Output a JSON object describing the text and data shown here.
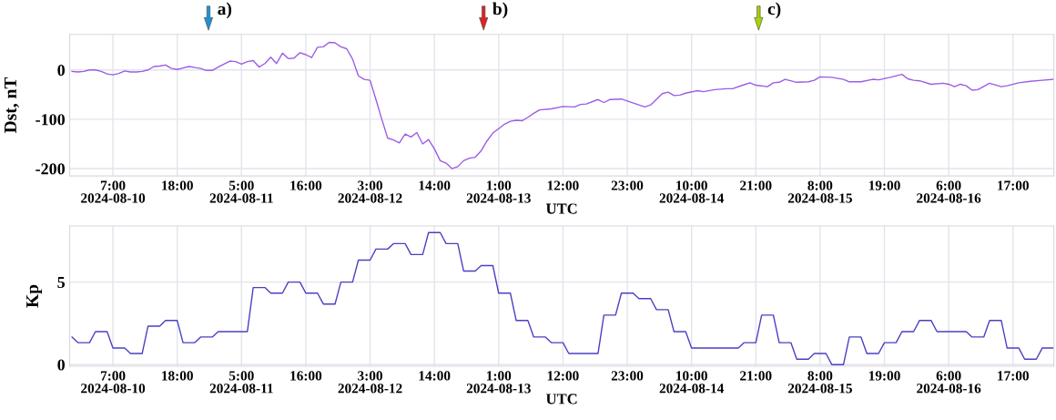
{
  "chart_data": [
    {
      "type": "line",
      "ylabel": "Dst, nT",
      "xlabel": "UTC",
      "grid": true,
      "xlim": [
        "2024-08-09T23:36",
        "2024-08-17T00:00"
      ],
      "ylim": [
        -215,
        72
      ],
      "yticks": [
        -200,
        -100,
        0
      ],
      "xticks": [
        {
          "value": "2024-08-10T07:00",
          "label": "7:00\n2024-08-10"
        },
        {
          "value": "2024-08-10T18:00",
          "label": "18:00"
        },
        {
          "value": "2024-08-11T05:00",
          "label": "5:00\n2024-08-11"
        },
        {
          "value": "2024-08-11T16:00",
          "label": "16:00"
        },
        {
          "value": "2024-08-12T03:00",
          "label": "3:00\n2024-08-12"
        },
        {
          "value": "2024-08-12T14:00",
          "label": "14:00"
        },
        {
          "value": "2024-08-13T01:00",
          "label": "1:00\n2024-08-13"
        },
        {
          "value": "2024-08-13T12:00",
          "label": "12:00"
        },
        {
          "value": "2024-08-13T23:00",
          "label": "23:00"
        },
        {
          "value": "2024-08-14T10:00",
          "label": "10:00\n2024-08-14"
        },
        {
          "value": "2024-08-14T21:00",
          "label": "21:00"
        },
        {
          "value": "2024-08-15T08:00",
          "label": "8:00\n2024-08-15"
        },
        {
          "value": "2024-08-15T19:00",
          "label": "19:00"
        },
        {
          "value": "2024-08-16T06:00",
          "label": "6:00\n2024-08-16"
        },
        {
          "value": "2024-08-16T17:00",
          "label": "17:00"
        }
      ],
      "annotations": [
        "a)",
        "b)",
        "c)"
      ],
      "series": [
        {
          "color": "#9b5de5",
          "x": [
            "2024-08-10T00:00",
            "2024-08-10T01:00",
            "2024-08-10T02:00",
            "2024-08-10T03:00",
            "2024-08-10T04:00",
            "2024-08-10T05:00",
            "2024-08-10T06:00",
            "2024-08-10T07:00",
            "2024-08-10T08:00",
            "2024-08-10T09:00",
            "2024-08-10T10:00",
            "2024-08-10T11:00",
            "2024-08-10T12:00",
            "2024-08-10T13:00",
            "2024-08-10T14:00",
            "2024-08-10T15:00",
            "2024-08-10T16:00",
            "2024-08-10T17:00",
            "2024-08-10T18:00",
            "2024-08-10T19:00",
            "2024-08-10T20:00",
            "2024-08-10T21:00",
            "2024-08-10T22:00",
            "2024-08-10T23:00",
            "2024-08-11T00:00",
            "2024-08-11T01:00",
            "2024-08-11T02:00",
            "2024-08-11T03:00",
            "2024-08-11T04:00",
            "2024-08-11T05:00",
            "2024-08-11T06:00",
            "2024-08-11T07:00",
            "2024-08-11T08:00",
            "2024-08-11T09:00",
            "2024-08-11T10:00",
            "2024-08-11T11:00",
            "2024-08-11T12:00",
            "2024-08-11T13:00",
            "2024-08-11T14:00",
            "2024-08-11T15:00",
            "2024-08-11T16:00",
            "2024-08-11T17:00",
            "2024-08-11T18:00",
            "2024-08-11T19:00",
            "2024-08-11T20:00",
            "2024-08-11T21:00",
            "2024-08-11T22:00",
            "2024-08-11T23:00",
            "2024-08-12T00:00",
            "2024-08-12T01:00",
            "2024-08-12T02:00",
            "2024-08-12T03:00",
            "2024-08-12T04:00",
            "2024-08-12T05:00",
            "2024-08-12T06:00",
            "2024-08-12T07:00",
            "2024-08-12T08:00",
            "2024-08-12T09:00",
            "2024-08-12T10:00",
            "2024-08-12T11:00",
            "2024-08-12T12:00",
            "2024-08-12T13:00",
            "2024-08-12T14:00",
            "2024-08-12T15:00",
            "2024-08-12T16:00",
            "2024-08-12T17:00",
            "2024-08-12T18:00",
            "2024-08-12T19:00",
            "2024-08-12T20:00",
            "2024-08-12T21:00",
            "2024-08-12T22:00",
            "2024-08-12T23:00",
            "2024-08-13T00:00",
            "2024-08-13T01:00",
            "2024-08-13T02:00",
            "2024-08-13T03:00",
            "2024-08-13T04:00",
            "2024-08-13T05:00",
            "2024-08-13T06:00",
            "2024-08-13T07:00",
            "2024-08-13T08:00",
            "2024-08-13T10:00",
            "2024-08-13T12:00",
            "2024-08-13T14:00",
            "2024-08-13T15:00",
            "2024-08-13T16:00",
            "2024-08-13T18:00",
            "2024-08-13T19:00",
            "2024-08-13T20:00",
            "2024-08-13T22:00",
            "2024-08-14T02:00",
            "2024-08-14T03:00",
            "2024-08-14T05:00",
            "2024-08-14T06:00",
            "2024-08-14T07:00",
            "2024-08-14T08:00",
            "2024-08-14T09:00",
            "2024-08-14T11:00",
            "2024-08-14T12:00",
            "2024-08-14T14:00",
            "2024-08-14T16:00",
            "2024-08-14T17:00",
            "2024-08-14T19:00",
            "2024-08-14T20:00",
            "2024-08-14T21:00",
            "2024-08-14T23:00",
            "2024-08-15T00:00",
            "2024-08-15T01:00",
            "2024-08-15T02:00",
            "2024-08-15T04:00",
            "2024-08-15T06:00",
            "2024-08-15T07:00",
            "2024-08-15T08:00",
            "2024-08-15T10:00",
            "2024-08-15T12:00",
            "2024-08-15T13:00",
            "2024-08-15T15:00",
            "2024-08-15T17:00",
            "2024-08-15T18:00",
            "2024-08-15T20:00",
            "2024-08-15T22:00",
            "2024-08-15T23:00",
            "2024-08-16T00:00",
            "2024-08-16T01:00",
            "2024-08-16T03:00",
            "2024-08-16T05:00",
            "2024-08-16T06:00",
            "2024-08-16T07:00",
            "2024-08-16T08:00",
            "2024-08-16T09:00",
            "2024-08-16T10:00",
            "2024-08-16T11:00",
            "2024-08-16T13:00",
            "2024-08-16T15:00",
            "2024-08-16T16:00",
            "2024-08-16T18:00",
            "2024-08-16T20:00",
            "2024-08-16T22:00",
            "2024-08-17T00:00"
          ],
          "values": [
            -3,
            -4,
            -3,
            0,
            0,
            -3,
            -8,
            -10,
            -7,
            -2,
            -4,
            -4,
            -3,
            0,
            7,
            8,
            10,
            3,
            1,
            4,
            7,
            5,
            3,
            -1,
            -1,
            6,
            12,
            18,
            17,
            12,
            17,
            19,
            6,
            13,
            26,
            13,
            34,
            23,
            24,
            35,
            31,
            25,
            46,
            47,
            56,
            55,
            47,
            43,
            22,
            -12,
            -19,
            -21,
            -60,
            -100,
            -138,
            -142,
            -148,
            -130,
            -136,
            -127,
            -150,
            -141,
            -160,
            -184,
            -189,
            -200,
            -196,
            -184,
            -179,
            -177,
            -164,
            -144,
            -128,
            -119,
            -110,
            -104,
            -102,
            -103,
            -96,
            -88,
            -81,
            -79,
            -74,
            -75,
            -70,
            -69,
            -60,
            -66,
            -60,
            -59,
            -75,
            -71,
            -48,
            -45,
            -52,
            -51,
            -47,
            -42,
            -44,
            -40,
            -38,
            -38,
            -30,
            -26,
            -31,
            -34,
            -26,
            -25,
            -19,
            -25,
            -24,
            -21,
            -14,
            -15,
            -19,
            -24,
            -24,
            -19,
            -20,
            -15,
            -9,
            -18,
            -21,
            -22,
            -29,
            -27,
            -29,
            -34,
            -29,
            -32,
            -41,
            -40,
            -27,
            -34,
            -32,
            -26,
            -23,
            -21,
            -19
          ]
        }
      ]
    },
    {
      "type": "line",
      "ylabel": "Kp",
      "xlabel": "UTC",
      "grid": true,
      "xlim": [
        "2024-08-09T23:36",
        "2024-08-17T00:00"
      ],
      "ylim": [
        -0.1,
        8.4
      ],
      "yticks": [
        0,
        5
      ],
      "xticks": [
        {
          "value": "2024-08-10T07:00",
          "label": "7:00\n2024-08-10"
        },
        {
          "value": "2024-08-10T18:00",
          "label": "18:00"
        },
        {
          "value": "2024-08-11T05:00",
          "label": "5:00\n2024-08-11"
        },
        {
          "value": "2024-08-11T16:00",
          "label": "16:00"
        },
        {
          "value": "2024-08-12T03:00",
          "label": "3:00\n2024-08-12"
        },
        {
          "value": "2024-08-12T14:00",
          "label": "14:00"
        },
        {
          "value": "2024-08-13T01:00",
          "label": "1:00\n2024-08-13"
        },
        {
          "value": "2024-08-13T12:00",
          "label": "12:00"
        },
        {
          "value": "2024-08-13T23:00",
          "label": "23:00"
        },
        {
          "value": "2024-08-14T10:00",
          "label": "10:00\n2024-08-14"
        },
        {
          "value": "2024-08-14T21:00",
          "label": "21:00"
        },
        {
          "value": "2024-08-15T08:00",
          "label": "8:00\n2024-08-15"
        },
        {
          "value": "2024-08-15T19:00",
          "label": "19:00"
        },
        {
          "value": "2024-08-16T06:00",
          "label": "6:00\n2024-08-16"
        },
        {
          "value": "2024-08-16T17:00",
          "label": "17:00"
        }
      ],
      "series": [
        {
          "color": "#4a40c4",
          "x": [
            "2024-08-10T00:00",
            "2024-08-10T01:00",
            "2024-08-10T03:00",
            "2024-08-10T04:00",
            "2024-08-10T06:00",
            "2024-08-10T07:00",
            "2024-08-10T09:00",
            "2024-08-10T10:00",
            "2024-08-10T12:00",
            "2024-08-10T13:00",
            "2024-08-10T15:00",
            "2024-08-10T16:00",
            "2024-08-10T18:00",
            "2024-08-10T19:00",
            "2024-08-10T21:00",
            "2024-08-10T22:00",
            "2024-08-11T00:00",
            "2024-08-11T01:00",
            "2024-08-11T06:00",
            "2024-08-11T07:00",
            "2024-08-11T09:00",
            "2024-08-11T10:00",
            "2024-08-11T12:00",
            "2024-08-11T13:00",
            "2024-08-11T15:00",
            "2024-08-11T16:00",
            "2024-08-11T18:00",
            "2024-08-11T19:00",
            "2024-08-11T21:00",
            "2024-08-11T22:00",
            "2024-08-12T00:00",
            "2024-08-12T01:00",
            "2024-08-12T03:00",
            "2024-08-12T04:00",
            "2024-08-12T06:00",
            "2024-08-12T07:00",
            "2024-08-12T09:00",
            "2024-08-12T10:00",
            "2024-08-12T12:00",
            "2024-08-12T13:00",
            "2024-08-12T15:00",
            "2024-08-12T16:00",
            "2024-08-12T18:00",
            "2024-08-12T19:00",
            "2024-08-12T21:00",
            "2024-08-12T22:00",
            "2024-08-13T00:00",
            "2024-08-13T01:00",
            "2024-08-13T03:00",
            "2024-08-13T04:00",
            "2024-08-13T06:00",
            "2024-08-13T07:00",
            "2024-08-13T09:00",
            "2024-08-13T10:00",
            "2024-08-13T12:00",
            "2024-08-13T13:00",
            "2024-08-13T18:00",
            "2024-08-13T19:00",
            "2024-08-13T21:00",
            "2024-08-13T22:00",
            "2024-08-14T00:00",
            "2024-08-14T01:00",
            "2024-08-14T03:00",
            "2024-08-14T04:00",
            "2024-08-14T06:00",
            "2024-08-14T07:00",
            "2024-08-14T09:00",
            "2024-08-14T10:00",
            "2024-08-14T18:00",
            "2024-08-14T19:00",
            "2024-08-14T21:00",
            "2024-08-14T22:00",
            "2024-08-15T00:00",
            "2024-08-15T01:00",
            "2024-08-15T03:00",
            "2024-08-15T04:00",
            "2024-08-15T06:00",
            "2024-08-15T07:00",
            "2024-08-15T09:00",
            "2024-08-15T10:00",
            "2024-08-15T12:00",
            "2024-08-15T13:00",
            "2024-08-15T15:00",
            "2024-08-15T16:00",
            "2024-08-15T18:00",
            "2024-08-15T19:00",
            "2024-08-15T21:00",
            "2024-08-15T22:00",
            "2024-08-16T00:00",
            "2024-08-16T01:00",
            "2024-08-16T03:00",
            "2024-08-16T04:00",
            "2024-08-16T09:00",
            "2024-08-16T10:00",
            "2024-08-16T12:00",
            "2024-08-16T13:00",
            "2024-08-16T15:00",
            "2024-08-16T16:00",
            "2024-08-16T18:00",
            "2024-08-16T19:00",
            "2024-08-16T21:00",
            "2024-08-16T22:00",
            "2024-08-17T00:00"
          ],
          "values": [
            1.67,
            1.33,
            1.33,
            2,
            2,
            1,
            1,
            0.67,
            0.67,
            2.33,
            2.33,
            2.67,
            2.67,
            1.33,
            1.33,
            1.67,
            1.67,
            2,
            2,
            4.67,
            4.67,
            4.33,
            4.33,
            5,
            5,
            4.33,
            4.33,
            3.67,
            3.67,
            5,
            5,
            6.33,
            6.33,
            7,
            7,
            7.33,
            7.33,
            6.67,
            6.67,
            8,
            8,
            7.33,
            7.33,
            5.67,
            5.67,
            6,
            6,
            4.33,
            4.33,
            2.67,
            2.67,
            1.67,
            1.67,
            1.33,
            1.33,
            0.67,
            0.67,
            3,
            3,
            4.33,
            4.33,
            4,
            4,
            3.33,
            3.33,
            2,
            2,
            1,
            1,
            1.33,
            1.33,
            3,
            3,
            1.33,
            1.33,
            0.33,
            0.33,
            0.67,
            0.67,
            0,
            0,
            1.67,
            1.67,
            0.67,
            0.67,
            1.33,
            1.33,
            2,
            2,
            2.67,
            2.67,
            2,
            2,
            1.67,
            1.67,
            2.67,
            2.67,
            1,
            1,
            0.33,
            0.33,
            1,
            1
          ]
        }
      ]
    }
  ]
}
